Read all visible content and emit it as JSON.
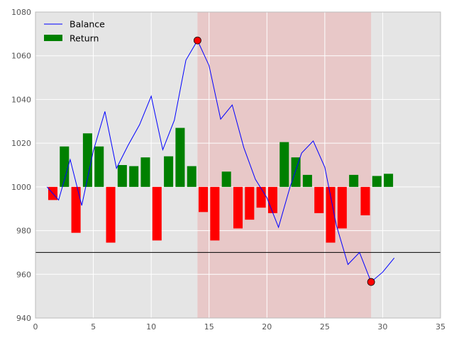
{
  "chart_data": {
    "type": "bar+line",
    "title": "",
    "xlabel": "",
    "ylabel": "",
    "xlim": [
      0,
      35
    ],
    "ylim": [
      940,
      1080
    ],
    "xticks": [
      0,
      5,
      10,
      15,
      20,
      25,
      30,
      35
    ],
    "yticks": [
      940,
      960,
      980,
      1000,
      1020,
      1040,
      1060,
      1080
    ],
    "grid": true,
    "legend_position": "top-left",
    "baseline": 1000,
    "reference_line": 970,
    "shaded_region": {
      "x_start": 14,
      "x_end": 29,
      "color": "#e8c8c8"
    },
    "colors": {
      "background": "#e5e5e5",
      "grid": "#ffffff",
      "balance_line": "#0000ff",
      "bar_positive": "#008000",
      "bar_negative": "#ff0000",
      "marker": "#ff0000",
      "reference_line": "#000000"
    },
    "legend": [
      {
        "label": "Balance",
        "kind": "line",
        "color": "#0000ff"
      },
      {
        "label": "Return",
        "kind": "bar",
        "color": "#008000"
      }
    ],
    "series": [
      {
        "name": "Balance",
        "type": "line",
        "x": [
          1,
          2,
          3,
          4,
          5,
          6,
          7,
          8,
          9,
          10,
          11,
          12,
          13,
          14,
          15,
          16,
          17,
          18,
          19,
          20,
          21,
          22,
          23,
          24,
          25,
          26,
          27,
          28,
          29,
          30,
          31
        ],
        "values": [
          1000,
          994,
          1012.5,
          991.5,
          1016.5,
          1034.5,
          1008.5,
          1019,
          1028.5,
          1041.5,
          1017,
          1030.5,
          1058,
          1067,
          1055.5,
          1031,
          1037.5,
          1018,
          1003.5,
          995,
          981.5,
          1000,
          1015.5,
          1021,
          1009,
          982.5,
          964.5,
          970,
          956.5,
          961,
          967.5
        ]
      },
      {
        "name": "Return",
        "type": "bar",
        "x": [
          1.5,
          2.5,
          3.5,
          4.5,
          5.5,
          6.5,
          7.5,
          8.5,
          9.5,
          10.5,
          11.5,
          12.5,
          13.5,
          14.5,
          15.5,
          16.5,
          17.5,
          18.5,
          19.5,
          20.5,
          21.5,
          22.5,
          23.5,
          24.5,
          25.5,
          26.5,
          27.5,
          28.5,
          29.5,
          30.5
        ],
        "values": [
          -6,
          18.5,
          -21,
          24.5,
          18.5,
          -25.5,
          10,
          9.5,
          13.5,
          -24.5,
          14,
          27,
          9.5,
          -11.5,
          -24.5,
          7,
          -19,
          -15,
          -9.5,
          -12,
          20.5,
          13.5,
          5.5,
          -12,
          -25.5,
          -19,
          5.5,
          -13,
          5,
          6
        ]
      }
    ],
    "markers": [
      {
        "x": 14,
        "y": 1067
      },
      {
        "x": 29,
        "y": 956.5
      }
    ]
  }
}
